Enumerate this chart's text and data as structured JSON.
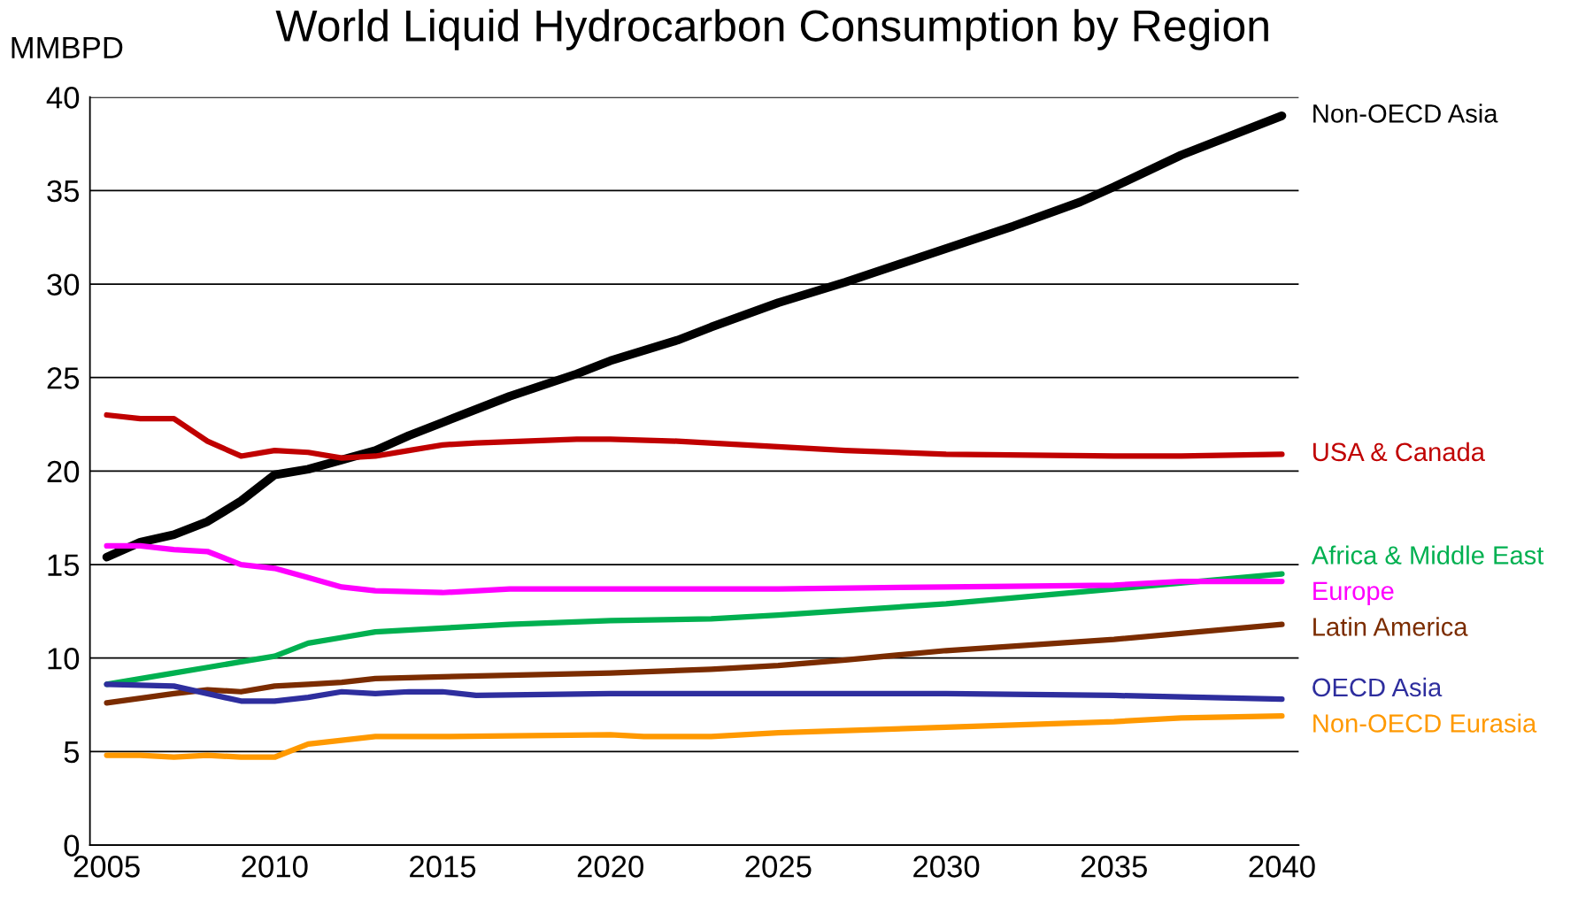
{
  "chart_data": {
    "type": "line",
    "title": "World Liquid Hydrocarbon Consumption by Region",
    "ylabel": "MMBPD",
    "xlim": [
      2004.5,
      2040.5
    ],
    "xticks": [
      2005,
      2010,
      2015,
      2020,
      2025,
      2030,
      2035,
      2040
    ],
    "ylim": [
      0,
      40
    ],
    "yticks": [
      0,
      5,
      10,
      15,
      20,
      25,
      30,
      35,
      40
    ],
    "grid": "y",
    "series": [
      {
        "name": "Non-OECD Asia",
        "color": "#000000",
        "x": [
          2005,
          2006,
          2007,
          2008,
          2009,
          2010,
          2011,
          2012,
          2013,
          2014,
          2015,
          2017,
          2019,
          2020,
          2022,
          2023,
          2025,
          2027,
          2030,
          2032,
          2034,
          2035,
          2037,
          2040
        ],
        "values": [
          15.4,
          16.2,
          16.6,
          17.3,
          18.4,
          19.8,
          20.1,
          20.6,
          21.1,
          21.9,
          22.6,
          24.0,
          25.2,
          25.9,
          27.0,
          27.7,
          29.0,
          30.1,
          31.9,
          33.1,
          34.4,
          35.2,
          36.9,
          39.0
        ]
      },
      {
        "name": "USA & Canada",
        "color": "#c00000",
        "x": [
          2005,
          2006,
          2007,
          2008,
          2009,
          2010,
          2011,
          2012,
          2013,
          2014,
          2015,
          2016,
          2019,
          2020,
          2022,
          2025,
          2027,
          2030,
          2035,
          2037,
          2040
        ],
        "values": [
          23.0,
          22.8,
          22.8,
          21.6,
          20.8,
          21.1,
          21.0,
          20.7,
          20.8,
          21.1,
          21.4,
          21.5,
          21.7,
          21.7,
          21.6,
          21.3,
          21.1,
          20.9,
          20.8,
          20.8,
          20.9
        ]
      },
      {
        "name": "Africa & Middle East",
        "color": "#00b050",
        "x": [
          2005,
          2007,
          2008,
          2009,
          2010,
          2011,
          2012,
          2013,
          2015,
          2017,
          2020,
          2023,
          2025,
          2030,
          2035,
          2040
        ],
        "values": [
          8.6,
          9.2,
          9.5,
          9.8,
          10.1,
          10.8,
          11.1,
          11.4,
          11.6,
          11.8,
          12.0,
          12.1,
          12.3,
          12.9,
          13.7,
          14.5
        ]
      },
      {
        "name": "Europe",
        "color": "#ff00ff",
        "x": [
          2005,
          2006,
          2007,
          2008,
          2009,
          2010,
          2011,
          2012,
          2013,
          2015,
          2017,
          2020,
          2025,
          2030,
          2035,
          2037,
          2040
        ],
        "values": [
          16.0,
          16.0,
          15.8,
          15.7,
          15.0,
          14.8,
          14.3,
          13.8,
          13.6,
          13.5,
          13.7,
          13.7,
          13.7,
          13.8,
          13.9,
          14.1,
          14.1
        ]
      },
      {
        "name": "Latin America",
        "color": "#7b2c00",
        "x": [
          2005,
          2007,
          2008,
          2009,
          2010,
          2011,
          2012,
          2013,
          2015,
          2020,
          2023,
          2025,
          2027,
          2030,
          2035,
          2040
        ],
        "values": [
          7.6,
          8.1,
          8.3,
          8.2,
          8.5,
          8.6,
          8.7,
          8.9,
          9.0,
          9.2,
          9.4,
          9.6,
          9.9,
          10.4,
          11.0,
          11.8
        ]
      },
      {
        "name": "OECD Asia",
        "color": "#2e2e9e",
        "x": [
          2005,
          2007,
          2008,
          2009,
          2010,
          2011,
          2012,
          2013,
          2014,
          2015,
          2016,
          2020,
          2030,
          2035,
          2040
        ],
        "values": [
          8.6,
          8.5,
          8.1,
          7.7,
          7.7,
          7.9,
          8.2,
          8.1,
          8.2,
          8.2,
          8.0,
          8.1,
          8.1,
          8.0,
          7.8
        ]
      },
      {
        "name": "Non-OECD Eurasia",
        "color": "#ff9900",
        "x": [
          2005,
          2006,
          2007,
          2008,
          2009,
          2010,
          2011,
          2012,
          2013,
          2015,
          2020,
          2021,
          2023,
          2025,
          2030,
          2035,
          2037,
          2040
        ],
        "values": [
          4.8,
          4.8,
          4.7,
          4.8,
          4.7,
          4.7,
          5.4,
          5.6,
          5.8,
          5.8,
          5.9,
          5.8,
          5.8,
          6.0,
          6.3,
          6.6,
          6.8,
          6.9
        ]
      }
    ]
  }
}
